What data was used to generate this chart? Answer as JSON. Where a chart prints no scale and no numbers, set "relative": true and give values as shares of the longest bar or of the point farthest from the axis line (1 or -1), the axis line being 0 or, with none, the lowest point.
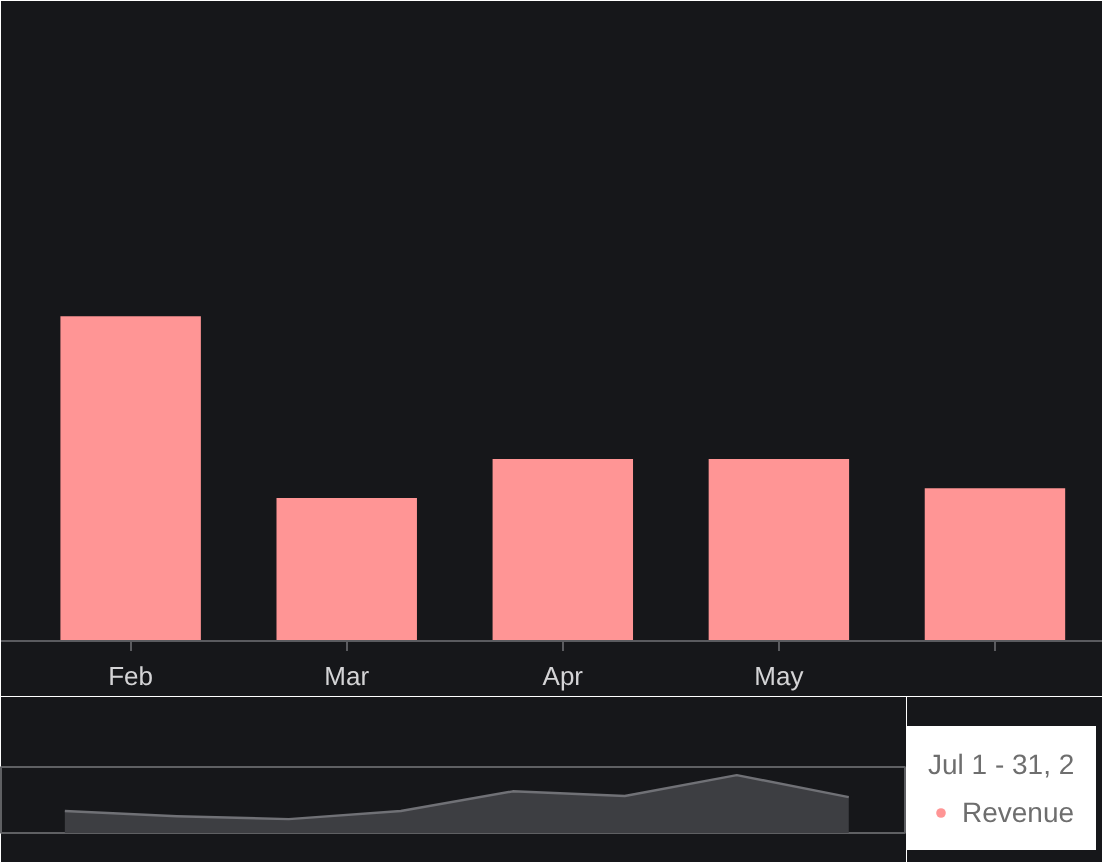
{
  "chart_data": [
    {
      "type": "bar",
      "categories": [
        "Feb",
        "Mar",
        "Apr",
        "May",
        null
      ],
      "series": [
        {
          "name": "Revenue",
          "color": "#ff9595",
          "values": [
            1,
            0.44,
            0.56,
            0.56,
            0.47
          ]
        }
      ],
      "relative": true,
      "legend": "bottom right",
      "legend_title": "Jul 1 - 31, 2"
    },
    {
      "type": "area",
      "categories": [
        null,
        null,
        null,
        null,
        null,
        null,
        null,
        null
      ],
      "values": [
        0.38,
        0.29,
        0.24,
        0.38,
        0.72,
        0.64,
        1,
        0.62
      ],
      "color": "#3d3e42",
      "relative": true
    }
  ]
}
